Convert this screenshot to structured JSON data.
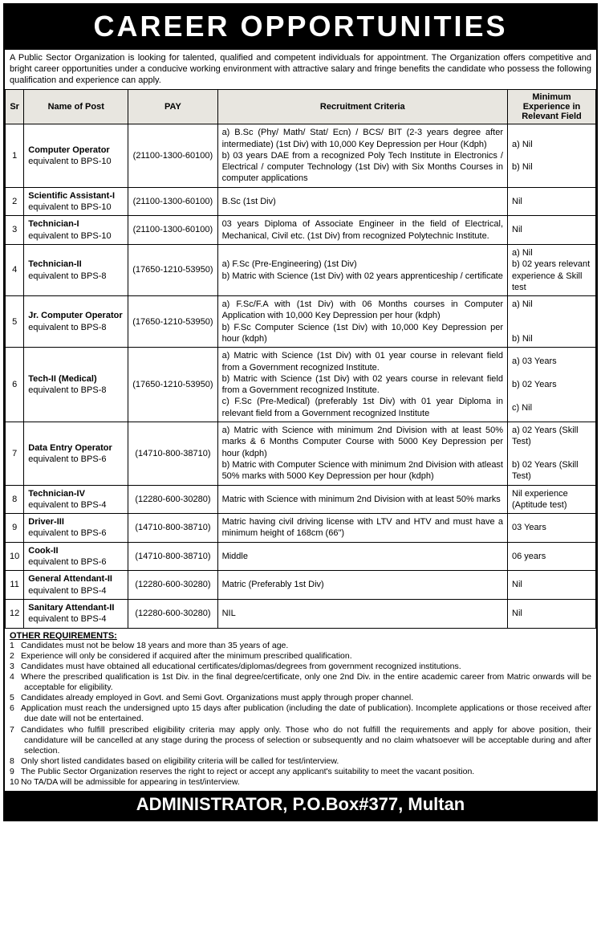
{
  "header": {
    "title": "CAREER OPPORTUNITIES"
  },
  "intro": "A Public Sector Organization is looking for talented, qualified and competent individuals for appointment. The Organization offers competitive and bright career opportunities under a conducive working environment with attractive salary and fringe benefits the candidate who possess the following qualification and experience can apply.",
  "table": {
    "columns": [
      "Sr",
      "Name of Post",
      "PAY",
      "Recruitment Criteria",
      "Minimum Experience in Relevant Field"
    ],
    "rows": [
      {
        "sr": "1",
        "post": "Computer Operator",
        "bps": "equivalent to BPS-10",
        "pay": "(21100-1300-60100)",
        "criteria": "a) B.Sc (Phy/ Math/ Stat/ Ecn) / BCS/ BIT (2-3 years degree after intermediate) (1st Div) with 10,000 Key Depression per Hour (Kdph)\nb) 03 years DAE from a recognized Poly Tech Institute in Electronics / Electrical / computer Technology (1st Div) with Six Months Courses in computer applications",
        "exp": "a) Nil\n\nb) Nil"
      },
      {
        "sr": "2",
        "post": "Scientific Assistant-I",
        "bps": "equivalent to BPS-10",
        "pay": "(21100-1300-60100)",
        "criteria": "B.Sc (1st Div)",
        "exp": "Nil"
      },
      {
        "sr": "3",
        "post": "Technician-I",
        "bps": "equivalent to BPS-10",
        "pay": "(21100-1300-60100)",
        "criteria": "03 years Diploma of Associate Engineer in the field of Electrical, Mechanical, Civil etc. (1st Div) from recognized Polytechnic Institute.",
        "exp": "Nil"
      },
      {
        "sr": "4",
        "post": "Technician-II",
        "bps": "equivalent to BPS-8",
        "pay": "(17650-1210-53950)",
        "criteria": "a) F.Sc (Pre-Engineering) (1st Div)\nb) Matric with Science (1st Div) with 02 years apprenticeship / certificate",
        "exp": "a) Nil\nb) 02 years relevant experience & Skill test"
      },
      {
        "sr": "5",
        "post": "Jr. Computer Operator",
        "bps": "equivalent to BPS-8",
        "pay": "(17650-1210-53950)",
        "criteria": "a) F.Sc/F.A with (1st Div) with 06 Months courses in Computer Application with 10,000 Key Depression per hour (kdph)\nb) F.Sc Computer Science (1st Div) with 10,000 Key Depression per hour (kdph)",
        "exp": "a) Nil\n\n\nb) Nil"
      },
      {
        "sr": "6",
        "post": "Tech-II (Medical)",
        "bps": "equivalent to BPS-8",
        "pay": "(17650-1210-53950)",
        "criteria": "a) Matric with Science (1st Div) with 01 year course in relevant field from a Government recognized Institute.\nb) Matric with Science (1st Div) with 02 years course in relevant field from a Government recognized Institute.\nc) F.Sc (Pre-Medical) (preferably 1st Div) with 01 year Diploma in relevant field from a Government recognized Institute",
        "exp": "a) 03 Years\n\nb) 02 Years\n\nc) Nil"
      },
      {
        "sr": "7",
        "post": "Data Entry Operator",
        "bps": "equivalent to BPS-6",
        "pay": "(14710-800-38710)",
        "criteria": "a) Matric with Science with minimum 2nd Division with at least 50% marks & 6 Months Computer Course with 5000 Key Depression per hour (kdph)\nb) Matric with Computer Science with minimum 2nd Division with atleast 50% marks with 5000 Key Depression per hour (kdph)",
        "exp": "a) 02 Years (Skill Test)\n\nb) 02 Years (Skill Test)"
      },
      {
        "sr": "8",
        "post": "Technician-IV",
        "bps": "equivalent to BPS-4",
        "pay": "(12280-600-30280)",
        "criteria": "Matric with Science with minimum 2nd Division with at least 50% marks",
        "exp": "Nil experience (Aptitude test)"
      },
      {
        "sr": "9",
        "post": "Driver-III",
        "bps": "equivalent to BPS-6",
        "pay": "(14710-800-38710)",
        "criteria": "Matric having civil driving license with LTV and HTV and must have a minimum height of 168cm (66\")",
        "exp": "03 Years"
      },
      {
        "sr": "10",
        "post": "Cook-II",
        "bps": "equivalent to BPS-6",
        "pay": "(14710-800-38710)",
        "criteria": "Middle",
        "exp": "06 years"
      },
      {
        "sr": "11",
        "post": "General Attendant-II",
        "bps": "equivalent to BPS-4",
        "pay": "(12280-600-30280)",
        "criteria": "Matric (Preferably 1st Div)",
        "exp": "Nil"
      },
      {
        "sr": "12",
        "post": "Sanitary Attendant-II",
        "bps": "equivalent to BPS-4",
        "pay": "(12280-600-30280)",
        "criteria": "NIL",
        "exp": "Nil"
      }
    ]
  },
  "other_requirements": {
    "title": "OTHER REQUIREMENTS:",
    "items": [
      "Candidates must not be below 18 years and more than 35 years of age.",
      "Experience will only be considered if acquired after the minimum prescribed qualification.",
      "Candidates must have obtained all educational certificates/diplomas/degrees from government recognized institutions.",
      "Where the prescribed qualification is 1st Div. in the final degree/certificate, only one 2nd Div. in the entire academic career from Matric onwards will be acceptable for eligibility.",
      "Candidates already employed in Govt. and Semi Govt. Organizations must apply through proper channel.",
      "Application must reach the undersigned upto 15 days after publication (including the date of publication). Incomplete applications or those received after due date will not be entertained.",
      "Candidates who fulfill prescribed eligibility criteria may apply only. Those who do not fulfill the requirements and apply for above position, their candidature will be cancelled at any stage during the process of selection or subsequently and no claim whatsoever will be acceptable during and after selection.",
      "Only short listed candidates based on eligibility criteria will be called for test/interview.",
      "The Public Sector Organization reserves the right to reject or accept any applicant's suitability to meet the vacant position.",
      "No TA/DA will be admissible for appearing in test/interview."
    ]
  },
  "footer": "ADMINISTRATOR, P.O.Box#377, Multan"
}
